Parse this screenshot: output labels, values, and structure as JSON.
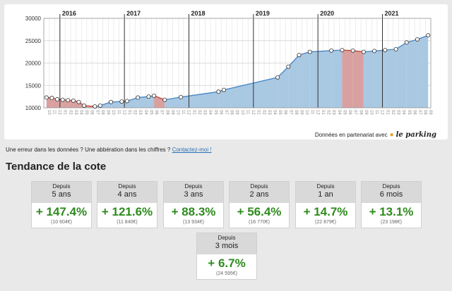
{
  "chart_data": {
    "type": "area",
    "years": [
      "2016",
      "2017",
      "2018",
      "2019",
      "2020",
      "2021"
    ],
    "y_ticks": [
      10000,
      15000,
      20000,
      25000,
      30000
    ],
    "ylim": [
      10000,
      30000
    ],
    "x_tick_labels": [
      "10",
      "11",
      "12",
      "01",
      "02",
      "03",
      "04",
      "05",
      "06",
      "07",
      "08",
      "09",
      "10",
      "11",
      "12",
      "01",
      "02",
      "03",
      "04",
      "05",
      "06",
      "07",
      "08",
      "09",
      "10",
      "11",
      "12",
      "01",
      "02",
      "03",
      "04",
      "05",
      "06",
      "07",
      "08",
      "09",
      "10",
      "11",
      "12",
      "01",
      "02",
      "03",
      "04",
      "05",
      "06",
      "07",
      "08",
      "09",
      "10",
      "11",
      "12",
      "01",
      "02",
      "03",
      "04",
      "05",
      "06",
      "07",
      "08",
      "09",
      "10",
      "11",
      "12",
      "01",
      "02",
      "03",
      "04",
      "05",
      "06",
      "07",
      "08",
      "09"
    ],
    "series": [
      {
        "x": [
          "2015-10",
          "2015-11",
          "2015-12",
          "2016-01",
          "2016-02",
          "2016-03",
          "2016-04",
          "2016-05",
          "2016-07",
          "2016-08",
          "2016-10",
          "2016-12",
          "2017-01",
          "2017-03",
          "2017-05",
          "2017-06",
          "2017-08",
          "2017-11",
          "2018-06",
          "2018-07",
          "2019-05",
          "2019-07",
          "2019-09",
          "2019-11",
          "2020-03",
          "2020-05",
          "2020-07",
          "2020-09",
          "2020-11",
          "2021-01",
          "2021-03",
          "2021-05",
          "2021-07",
          "2021-09"
        ],
        "y": [
          12300,
          12200,
          11900,
          11800,
          11700,
          11600,
          11300,
          10500,
          10300,
          10500,
          11300,
          11400,
          11500,
          12300,
          12500,
          12700,
          11800,
          12400,
          13600,
          14000,
          16800,
          19200,
          21800,
          22500,
          22800,
          22900,
          22800,
          22500,
          22700,
          22900,
          23100,
          24600,
          25300,
          26200
        ]
      }
    ],
    "colors": {
      "up_fill": "#a9c8e2",
      "down_fill": "#d9a0a0",
      "up_line": "#3a7fc1",
      "down_line": "#c0392b"
    },
    "grid": true
  },
  "partner": {
    "prefix": "Données en partenariat avec",
    "brand": "le parking",
    "pin_icon": "map-pin-icon"
  },
  "error_note": {
    "text": "Une erreur dans les données ? Une abbération dans les chiffres ?",
    "link": "Contactez-moi !"
  },
  "section_title": "Tendance de la cote",
  "cards": [
    {
      "since": "Depuis",
      "period": "5 ans",
      "pct": "+ 147.4%",
      "price": "(10 604€)"
    },
    {
      "since": "Depuis",
      "period": "4 ans",
      "pct": "+ 121.6%",
      "price": "(11 840€)"
    },
    {
      "since": "Depuis",
      "period": "3 ans",
      "pct": "+ 88.3%",
      "price": "(13 934€)"
    },
    {
      "since": "Depuis",
      "period": "2 ans",
      "pct": "+ 56.4%",
      "price": "(16 770€)"
    },
    {
      "since": "Depuis",
      "period": "1 an",
      "pct": "+ 14.7%",
      "price": "(22 879€)"
    },
    {
      "since": "Depuis",
      "period": "6 mois",
      "pct": "+ 13.1%",
      "price": "(23 198€)"
    },
    {
      "since": "Depuis",
      "period": "3 mois",
      "pct": "+ 6.7%",
      "price": "(24 595€)"
    }
  ]
}
